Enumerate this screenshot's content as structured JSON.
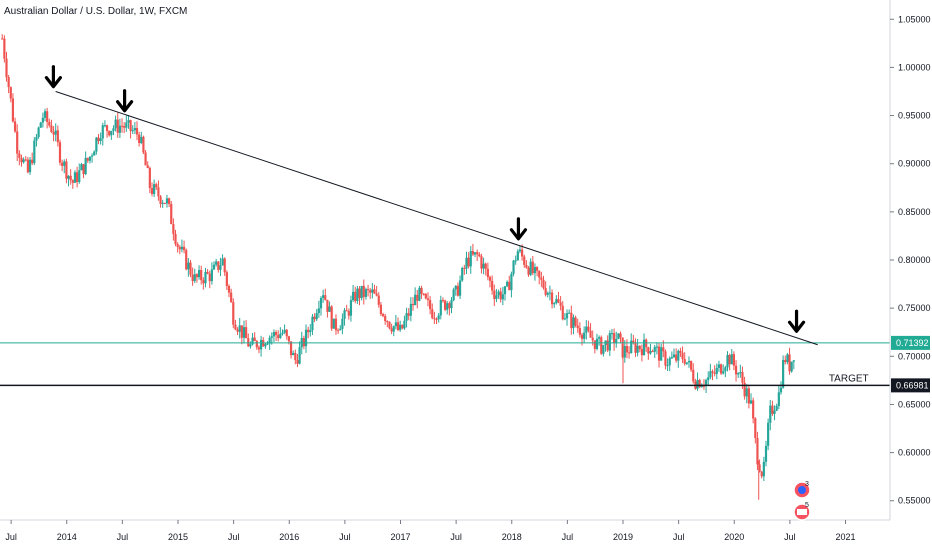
{
  "chart_data": {
    "type": "candlestick",
    "title": "Australian Dollar / U.S. Dollar, 1W, FXCM",
    "ylim": [
      0.53,
      1.07
    ],
    "x_range": [
      2013.4,
      2021.4
    ],
    "y_ticks": [
      "1.05000",
      "1.00000",
      "0.95000",
      "0.90000",
      "0.85000",
      "0.80000",
      "0.75000",
      "0.70000",
      "0.65000",
      "0.60000",
      "0.55000"
    ],
    "y_tick_values": [
      1.05,
      1.0,
      0.95,
      0.9,
      0.85,
      0.8,
      0.75,
      0.7,
      0.65,
      0.6,
      0.55
    ],
    "x_ticks": [
      "Jul",
      "2014",
      "Jul",
      "2015",
      "Jul",
      "2016",
      "Jul",
      "2017",
      "Jul",
      "2018",
      "Jul",
      "2019",
      "Jul",
      "2020",
      "Jul",
      "2021"
    ],
    "x_tick_values": [
      2013.5,
      2014.0,
      2014.5,
      2015.0,
      2015.5,
      2016.0,
      2016.5,
      2017.0,
      2017.5,
      2018.0,
      2018.5,
      2019.0,
      2019.5,
      2020.0,
      2020.5,
      2021.0
    ],
    "price_path": [
      {
        "x": 2013.42,
        "y": 1.03
      },
      {
        "x": 2013.55,
        "y": 0.92
      },
      {
        "x": 2013.65,
        "y": 0.89
      },
      {
        "x": 2013.78,
        "y": 0.95
      },
      {
        "x": 2013.88,
        "y": 0.935
      },
      {
        "x": 2013.95,
        "y": 0.905
      },
      {
        "x": 2014.05,
        "y": 0.88
      },
      {
        "x": 2014.2,
        "y": 0.905
      },
      {
        "x": 2014.3,
        "y": 0.935
      },
      {
        "x": 2014.5,
        "y": 0.94
      },
      {
        "x": 2014.65,
        "y": 0.93
      },
      {
        "x": 2014.75,
        "y": 0.875
      },
      {
        "x": 2014.9,
        "y": 0.86
      },
      {
        "x": 2015.0,
        "y": 0.815
      },
      {
        "x": 2015.15,
        "y": 0.78
      },
      {
        "x": 2015.3,
        "y": 0.785
      },
      {
        "x": 2015.4,
        "y": 0.8
      },
      {
        "x": 2015.5,
        "y": 0.74
      },
      {
        "x": 2015.65,
        "y": 0.71
      },
      {
        "x": 2015.8,
        "y": 0.72
      },
      {
        "x": 2015.95,
        "y": 0.725
      },
      {
        "x": 2016.05,
        "y": 0.695
      },
      {
        "x": 2016.15,
        "y": 0.72
      },
      {
        "x": 2016.3,
        "y": 0.77
      },
      {
        "x": 2016.4,
        "y": 0.73
      },
      {
        "x": 2016.5,
        "y": 0.74
      },
      {
        "x": 2016.6,
        "y": 0.765
      },
      {
        "x": 2016.75,
        "y": 0.765
      },
      {
        "x": 2016.9,
        "y": 0.735
      },
      {
        "x": 2017.0,
        "y": 0.725
      },
      {
        "x": 2017.15,
        "y": 0.765
      },
      {
        "x": 2017.3,
        "y": 0.745
      },
      {
        "x": 2017.5,
        "y": 0.765
      },
      {
        "x": 2017.6,
        "y": 0.8
      },
      {
        "x": 2017.7,
        "y": 0.805
      },
      {
        "x": 2017.85,
        "y": 0.765
      },
      {
        "x": 2017.95,
        "y": 0.765
      },
      {
        "x": 2018.05,
        "y": 0.81
      },
      {
        "x": 2018.2,
        "y": 0.785
      },
      {
        "x": 2018.35,
        "y": 0.765
      },
      {
        "x": 2018.5,
        "y": 0.74
      },
      {
        "x": 2018.65,
        "y": 0.725
      },
      {
        "x": 2018.8,
        "y": 0.71
      },
      {
        "x": 2018.95,
        "y": 0.72
      },
      {
        "x": 2019.0,
        "y": 0.705
      },
      {
        "x": 2019.1,
        "y": 0.71
      },
      {
        "x": 2019.25,
        "y": 0.71
      },
      {
        "x": 2019.4,
        "y": 0.695
      },
      {
        "x": 2019.55,
        "y": 0.7
      },
      {
        "x": 2019.65,
        "y": 0.675
      },
      {
        "x": 2019.75,
        "y": 0.675
      },
      {
        "x": 2019.85,
        "y": 0.685
      },
      {
        "x": 2019.95,
        "y": 0.7
      },
      {
        "x": 2020.05,
        "y": 0.68
      },
      {
        "x": 2020.15,
        "y": 0.65
      },
      {
        "x": 2020.2,
        "y": 0.6
      },
      {
        "x": 2020.26,
        "y": 0.575
      },
      {
        "x": 2020.32,
        "y": 0.64
      },
      {
        "x": 2020.4,
        "y": 0.66
      },
      {
        "x": 2020.45,
        "y": 0.7
      },
      {
        "x": 2020.5,
        "y": 0.69
      },
      {
        "x": 2020.55,
        "y": 0.71
      }
    ],
    "lows_outlier": [
      {
        "x": 2019.0,
        "y": 0.672
      },
      {
        "x": 2020.22,
        "y": 0.551
      }
    ],
    "trendline": {
      "x1": 2013.9,
      "y1": 0.975,
      "x2": 2020.75,
      "y2": 0.712,
      "color": "#131722"
    },
    "arrows": [
      {
        "x": 2013.88,
        "y": 0.98
      },
      {
        "x": 2014.52,
        "y": 0.955
      },
      {
        "x": 2018.06,
        "y": 0.822
      },
      {
        "x": 2020.56,
        "y": 0.726
      }
    ],
    "levels": [
      {
        "value": 0.71392,
        "label": "0.71392",
        "color": "#22ab94",
        "width": 1
      },
      {
        "value": 0.66981,
        "label": "0.66981",
        "color": "#131722",
        "width": 1.5
      }
    ],
    "annotation": {
      "text": "TARGET",
      "value": 0.66981,
      "x": 2020.85
    },
    "colors": {
      "up": "#26a69a",
      "down": "#ef5350",
      "axis": "#131722",
      "grid": "#f0f3fa"
    }
  }
}
